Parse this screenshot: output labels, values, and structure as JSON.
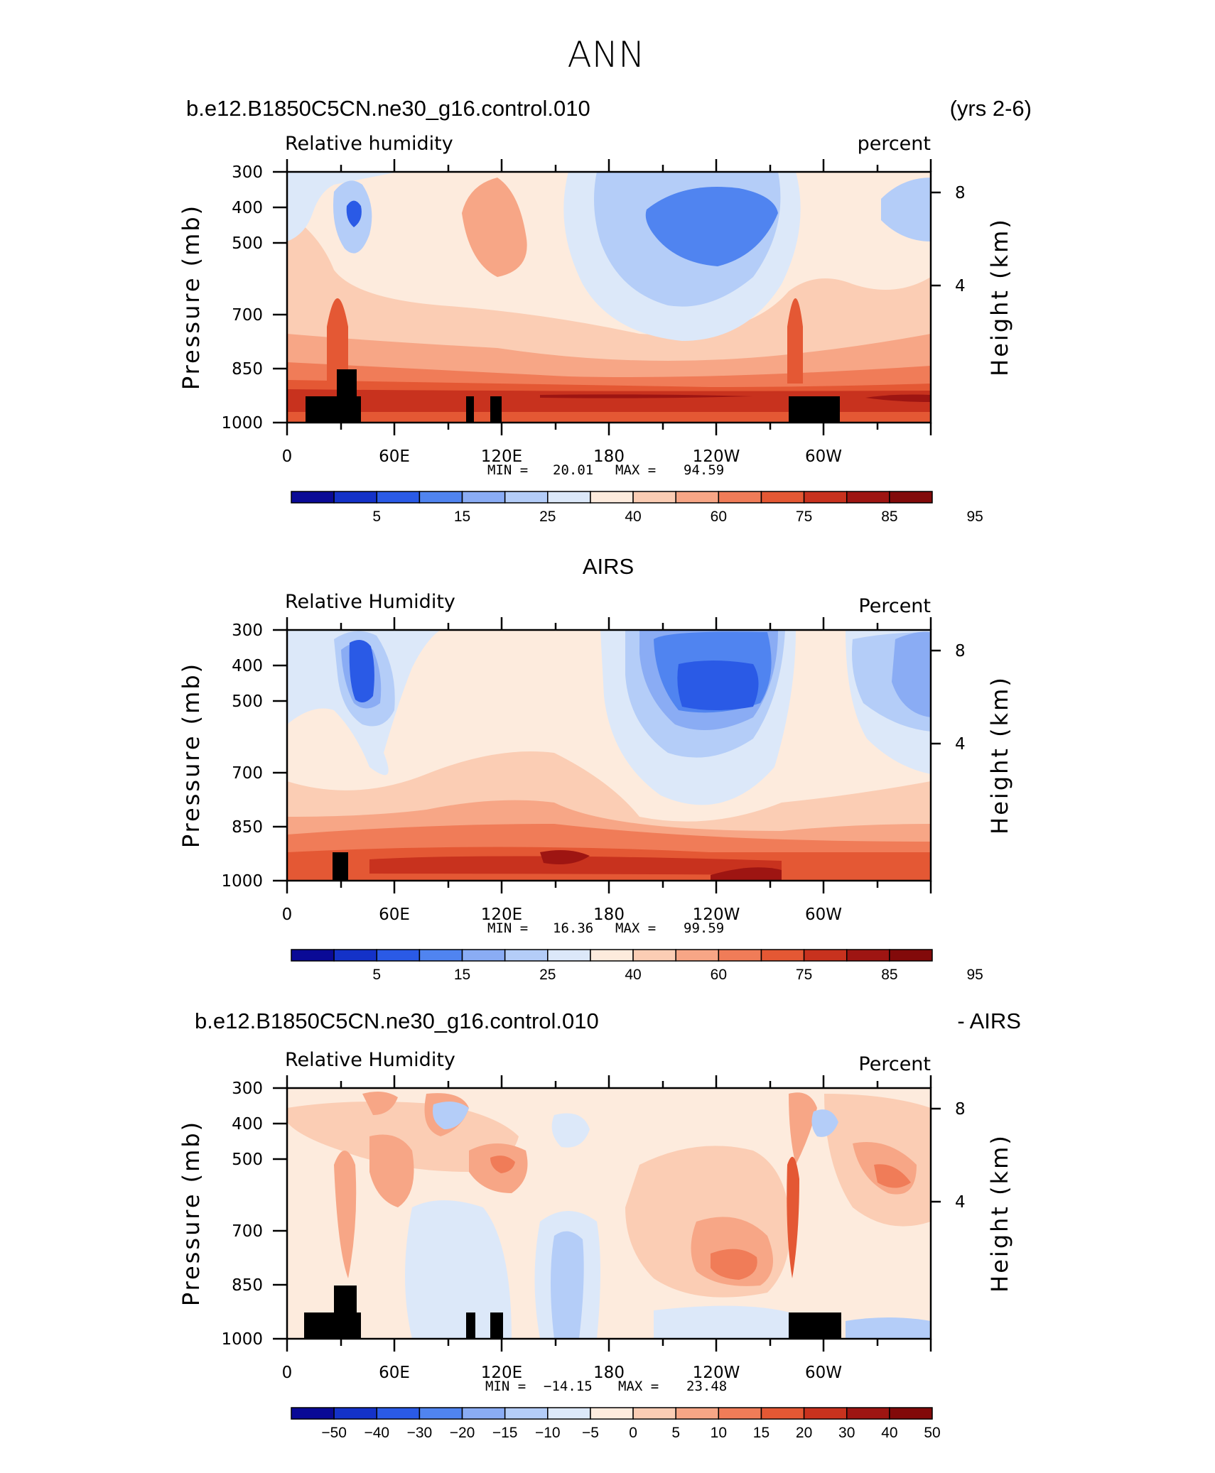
{
  "page": {
    "title": "ANN"
  },
  "chart_data": [
    {
      "type": "heatmap",
      "case_label": "b.e12.B1850C5CN.ne30_g16.control.010",
      "period_label": "(yrs 2-6)",
      "variable": "Relative humidity",
      "units": "percent",
      "ylabel": "Pressure (mb)",
      "ylabel_right": "Height (km)",
      "y_ticks": [
        "300",
        "400",
        "500",
        "700",
        "850",
        "1000"
      ],
      "y_right_ticks": [
        "8",
        "4"
      ],
      "x_ticks": [
        "0",
        "60E",
        "120E",
        "180",
        "120W",
        "60W"
      ],
      "min_label": "MIN =",
      "min_value": "20.01",
      "max_label": "MAX =",
      "max_value": "94.59",
      "colorbar_levels": [
        "5",
        "15",
        "25",
        "40",
        "60",
        "75",
        "85",
        "95"
      ],
      "min": 20.01,
      "max": 94.59
    },
    {
      "type": "heatmap",
      "dataset": "AIRS",
      "variable": "Relative Humidity",
      "units": "Percent",
      "ylabel": "Pressure (mb)",
      "ylabel_right": "Height (km)",
      "y_ticks": [
        "300",
        "400",
        "500",
        "700",
        "850",
        "1000"
      ],
      "y_right_ticks": [
        "8",
        "4"
      ],
      "x_ticks": [
        "0",
        "60E",
        "120E",
        "180",
        "120W",
        "60W"
      ],
      "min_label": "MIN =",
      "min_value": "16.36",
      "max_label": "MAX =",
      "max_value": "99.59",
      "colorbar_levels": [
        "5",
        "15",
        "25",
        "40",
        "60",
        "75",
        "85",
        "95"
      ],
      "min": 16.36,
      "max": 99.59
    },
    {
      "type": "heatmap",
      "case_label": "b.e12.B1850C5CN.ne30_g16.control.010",
      "diff_label": "- AIRS",
      "variable": "Relative Humidity",
      "units": "Percent",
      "ylabel": "Pressure (mb)",
      "ylabel_right": "Height (km)",
      "y_ticks": [
        "300",
        "400",
        "500",
        "700",
        "850",
        "1000"
      ],
      "y_right_ticks": [
        "8",
        "4"
      ],
      "x_ticks": [
        "0",
        "60E",
        "120E",
        "180",
        "120W",
        "60W"
      ],
      "min_label": "MIN =",
      "min_value": "−14.15",
      "max_label": "MAX =",
      "max_value": "23.48",
      "colorbar_levels": [
        "−50",
        "−40",
        "−30",
        "−20",
        "−15",
        "−10",
        "−5",
        "0",
        "5",
        "10",
        "15",
        "20",
        "30",
        "40",
        "50"
      ],
      "min": -14.15,
      "max": 23.48
    }
  ],
  "colors": {
    "colorbar": [
      "#0a0a96",
      "#1432c8",
      "#2a5ae6",
      "#5084f0",
      "#8aacf4",
      "#b4cdf8",
      "#dce8f9",
      "#fdebdd",
      "#fbcdb4",
      "#f7a686",
      "#f07c58",
      "#e45834",
      "#c8321e",
      "#9e1512",
      "#820a0a"
    ],
    "terrain": "#000000"
  }
}
